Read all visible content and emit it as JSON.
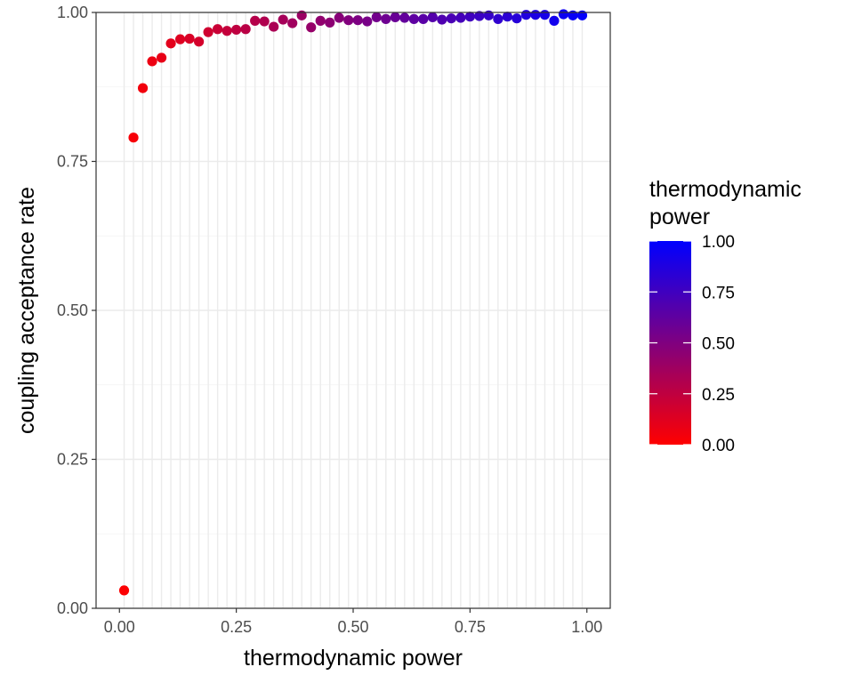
{
  "chart_data": {
    "type": "scatter",
    "xlabel": "thermodynamic power",
    "ylabel": "coupling acceptance rate",
    "xlim": [
      -0.05,
      1.05
    ],
    "ylim": [
      0,
      1
    ],
    "x_ticks": [
      "0.00",
      "0.25",
      "0.50",
      "0.75",
      "1.00"
    ],
    "y_ticks": [
      "0.00",
      "0.25",
      "0.50",
      "0.75",
      "1.00"
    ],
    "grid": true,
    "legend": {
      "title_lines": [
        "thermodynamic",
        "power"
      ],
      "labels": [
        "1.00",
        "0.75",
        "0.50",
        "0.25",
        "0.00"
      ],
      "placement": "right",
      "color_low": "#FF0000",
      "color_high": "#0000FF"
    },
    "x": [
      0.01,
      0.03,
      0.05,
      0.07,
      0.09,
      0.11,
      0.13,
      0.15,
      0.17,
      0.19,
      0.21,
      0.23,
      0.25,
      0.27,
      0.29,
      0.31,
      0.33,
      0.35,
      0.37,
      0.39,
      0.41,
      0.43,
      0.45,
      0.47,
      0.49,
      0.51,
      0.53,
      0.55,
      0.57,
      0.59,
      0.61,
      0.63,
      0.65,
      0.67,
      0.69,
      0.71,
      0.73,
      0.75,
      0.77,
      0.79,
      0.81,
      0.83,
      0.85,
      0.87,
      0.89,
      0.91,
      0.93,
      0.95,
      0.97,
      0.99
    ],
    "y": [
      0.03,
      0.79,
      0.873,
      0.918,
      0.924,
      0.948,
      0.955,
      0.956,
      0.951,
      0.967,
      0.972,
      0.969,
      0.971,
      0.972,
      0.986,
      0.985,
      0.976,
      0.988,
      0.982,
      0.995,
      0.975,
      0.986,
      0.983,
      0.991,
      0.987,
      0.987,
      0.985,
      0.992,
      0.989,
      0.992,
      0.991,
      0.989,
      0.989,
      0.992,
      0.988,
      0.99,
      0.991,
      0.993,
      0.994,
      0.995,
      0.989,
      0.993,
      0.99,
      0.996,
      0.996,
      0.996,
      0.986,
      0.997,
      0.995,
      0.995
    ],
    "color_value": "x"
  }
}
